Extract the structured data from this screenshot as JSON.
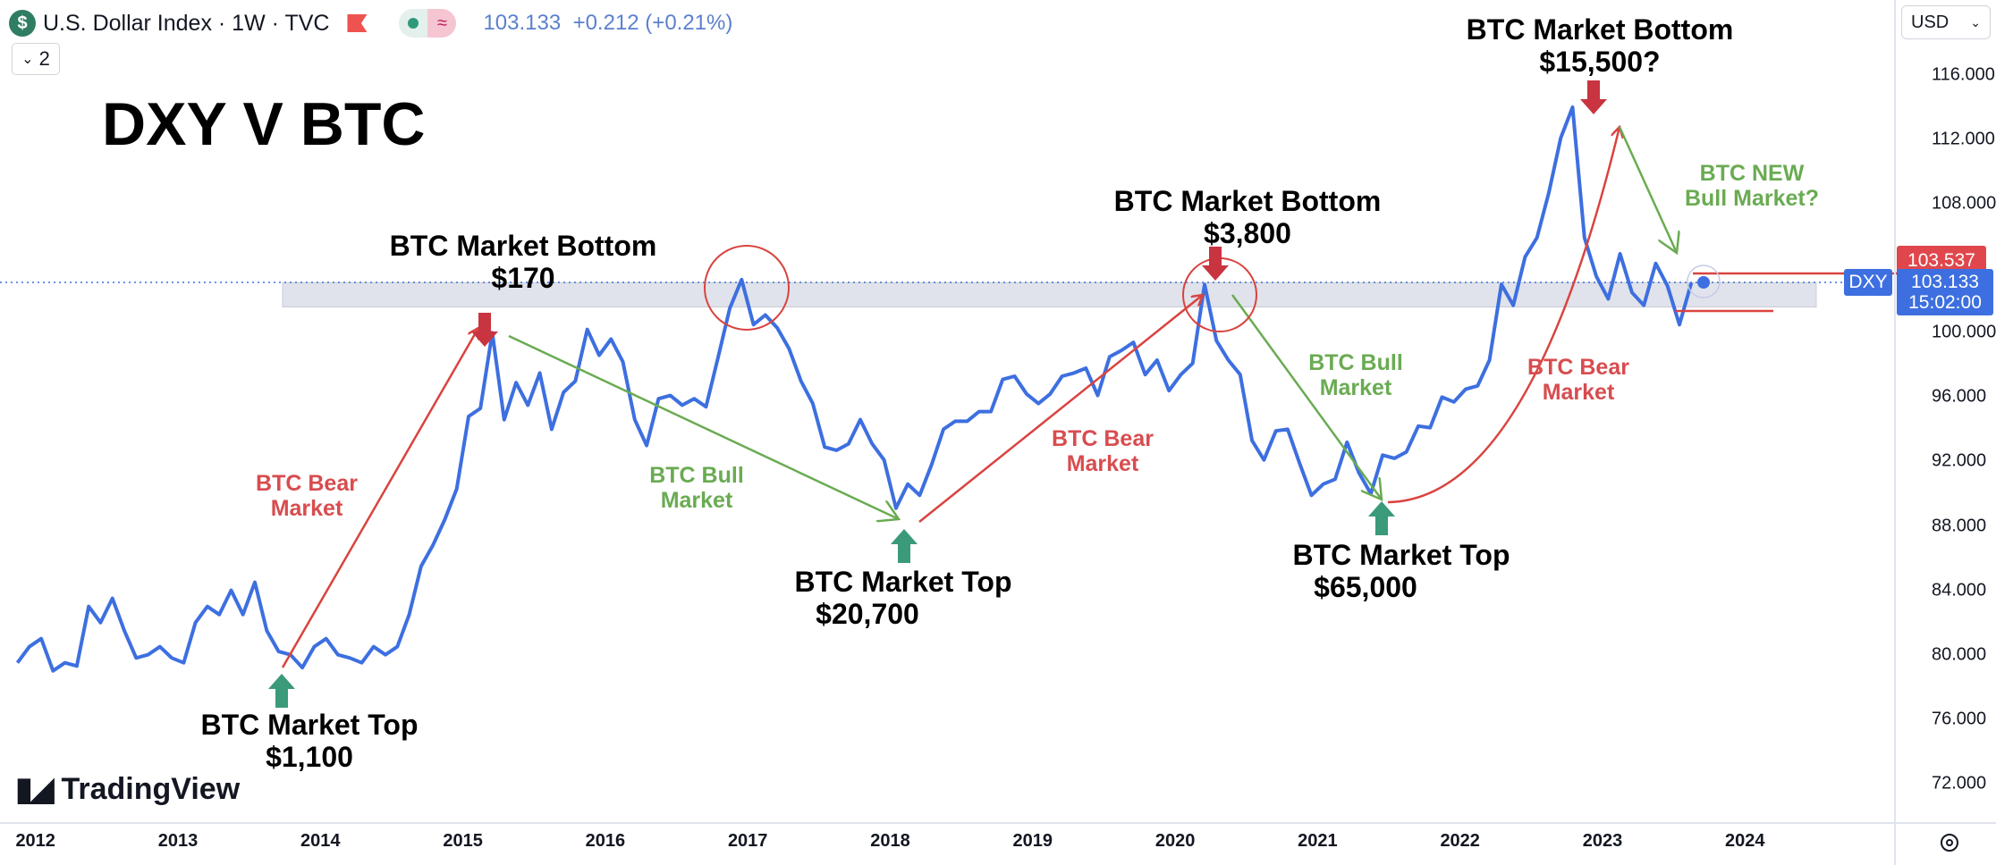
{
  "header": {
    "symbol_icon": "dollar-coin-icon",
    "symbol_icon_text": "$",
    "title": "U.S. Dollar Index · 1W · TVC",
    "price": "103.133",
    "change": "+0.212 (+0.21%)",
    "collapse_count": "2",
    "collapse_icon": "⌄",
    "pill_icon": "≈"
  },
  "currency_select": {
    "value": "USD",
    "icon": "⌄"
  },
  "price_tags": {
    "red_value": "103.537",
    "last_value": "103.133",
    "countdown": "15:02:00",
    "symbol_tag": "DXY"
  },
  "logo": {
    "text": "TradingView",
    "mark": "17"
  },
  "annotations": {
    "title": "DXY V BTC",
    "bottom_170": [
      "BTC Market Bottom",
      "$170"
    ],
    "bottom_3800": [
      "BTC Market Bottom",
      "$3,800"
    ],
    "bottom_15500": [
      "BTC Market Bottom",
      "$15,500?"
    ],
    "top_1100": [
      "BTC Market Top",
      "$1,100"
    ],
    "top_20700": [
      "BTC Market Top",
      "$20,700"
    ],
    "top_65000": [
      "BTC Market Top",
      "$65,000"
    ],
    "bear_1": [
      "BTC Bear",
      "Market"
    ],
    "bear_2": [
      "BTC Bear",
      "Market"
    ],
    "bear_3": [
      "BTC Bear",
      "Market"
    ],
    "bull_1": [
      "BTC Bull",
      "Market"
    ],
    "bull_2": [
      "BTC Bull",
      "Market"
    ],
    "bull_new": [
      "BTC NEW",
      "Bull Market?"
    ]
  },
  "colors": {
    "line": "#3d6fe0",
    "red": "#d9433f",
    "green": "#6aab52",
    "arrow_red": "#c8343f",
    "arrow_green": "#3a9a7a",
    "band": "#e0e3eb"
  },
  "chart_data": {
    "type": "line",
    "title": "",
    "xlabel": "",
    "ylabel": "",
    "ylim": [
      70,
      118
    ],
    "y_ticks": [
      "116.000",
      "112.000",
      "108.000",
      "100.000",
      "96.000",
      "92.000",
      "88.000",
      "84.000",
      "80.000",
      "76.000",
      "72.000"
    ],
    "x_ticks": [
      "2012",
      "2013",
      "2014",
      "2015",
      "2016",
      "2017",
      "2018",
      "2019",
      "2020",
      "2021",
      "2022",
      "2023",
      "2024"
    ],
    "grid": false,
    "resistance_band": [
      101.6,
      103.1
    ],
    "series": [
      {
        "name": "DXY",
        "points": [
          [
            "2011-11",
            79.5
          ],
          [
            "2011-12",
            80.5
          ],
          [
            "2012-01",
            81
          ],
          [
            "2012-02",
            79
          ],
          [
            "2012-03",
            79.5
          ],
          [
            "2012-04",
            79.3
          ],
          [
            "2012-05",
            83
          ],
          [
            "2012-06",
            82
          ],
          [
            "2012-07",
            83.5
          ],
          [
            "2012-08",
            81.5
          ],
          [
            "2012-09",
            79.8
          ],
          [
            "2012-10",
            80
          ],
          [
            "2012-11",
            80.5
          ],
          [
            "2012-12",
            79.8
          ],
          [
            "2013-01",
            79.5
          ],
          [
            "2013-02",
            82
          ],
          [
            "2013-03",
            83
          ],
          [
            "2013-04",
            82.5
          ],
          [
            "2013-05",
            84
          ],
          [
            "2013-06",
            82.5
          ],
          [
            "2013-07",
            84.5
          ],
          [
            "2013-08",
            81.5
          ],
          [
            "2013-09",
            80.2
          ],
          [
            "2013-10",
            80
          ],
          [
            "2013-11",
            79.2
          ],
          [
            "2013-12",
            80.5
          ],
          [
            "2014-01",
            81
          ],
          [
            "2014-02",
            80
          ],
          [
            "2014-03",
            79.8
          ],
          [
            "2014-04",
            79.5
          ],
          [
            "2014-05",
            80.5
          ],
          [
            "2014-06",
            80
          ],
          [
            "2014-07",
            80.5
          ],
          [
            "2014-08",
            82.5
          ],
          [
            "2014-09",
            85.5
          ],
          [
            "2014-10",
            86.8
          ],
          [
            "2014-11",
            88.4
          ],
          [
            "2014-12",
            90.3
          ],
          [
            "2015-01",
            94.8
          ],
          [
            "2015-02",
            95.3
          ],
          [
            "2015-03",
            100.0
          ],
          [
            "2015-04",
            94.6
          ],
          [
            "2015-05",
            96.9
          ],
          [
            "2015-06",
            95.5
          ],
          [
            "2015-07",
            97.5
          ],
          [
            "2015-08",
            94.0
          ],
          [
            "2015-09",
            96.3
          ],
          [
            "2015-10",
            97
          ],
          [
            "2015-11",
            100.2
          ],
          [
            "2015-12",
            98.6
          ],
          [
            "2016-01",
            99.6
          ],
          [
            "2016-02",
            98.2
          ],
          [
            "2016-03",
            94.6
          ],
          [
            "2016-04",
            93
          ],
          [
            "2016-05",
            95.9
          ],
          [
            "2016-06",
            96.1
          ],
          [
            "2016-07",
            95.5
          ],
          [
            "2016-08",
            95.9
          ],
          [
            "2016-09",
            95.4
          ],
          [
            "2016-10",
            98.4
          ],
          [
            "2016-11",
            101.5
          ],
          [
            "2016-12",
            103.3
          ],
          [
            "2017-01",
            100.5
          ],
          [
            "2017-02",
            101.1
          ],
          [
            "2017-03",
            100.3
          ],
          [
            "2017-04",
            99
          ],
          [
            "2017-05",
            97
          ],
          [
            "2017-06",
            95.6
          ],
          [
            "2017-07",
            92.9
          ],
          [
            "2017-08",
            92.7
          ],
          [
            "2017-09",
            93.1
          ],
          [
            "2017-10",
            94.6
          ],
          [
            "2017-11",
            93.1
          ],
          [
            "2017-12",
            92.1
          ],
          [
            "2018-01",
            89.1
          ],
          [
            "2018-02",
            90.6
          ],
          [
            "2018-03",
            89.9
          ],
          [
            "2018-04",
            91.8
          ],
          [
            "2018-05",
            94
          ],
          [
            "2018-06",
            94.5
          ],
          [
            "2018-07",
            94.5
          ],
          [
            "2018-08",
            95.1
          ],
          [
            "2018-09",
            95.1
          ],
          [
            "2018-10",
            97.1
          ],
          [
            "2018-11",
            97.3
          ],
          [
            "2018-12",
            96.2
          ],
          [
            "2019-01",
            95.6
          ],
          [
            "2019-02",
            96.2
          ],
          [
            "2019-03",
            97.3
          ],
          [
            "2019-04",
            97.5
          ],
          [
            "2019-05",
            97.8
          ],
          [
            "2019-06",
            96.1
          ],
          [
            "2019-07",
            98.5
          ],
          [
            "2019-08",
            98.9
          ],
          [
            "2019-09",
            99.4
          ],
          [
            "2019-10",
            97.4
          ],
          [
            "2019-11",
            98.3
          ],
          [
            "2019-12",
            96.4
          ],
          [
            "2020-01",
            97.4
          ],
          [
            "2020-02",
            98.1
          ],
          [
            "2020-03",
            103.0
          ],
          [
            "2020-04",
            99.5
          ],
          [
            "2020-05",
            98.3
          ],
          [
            "2020-06",
            97.4
          ],
          [
            "2020-07",
            93.3
          ],
          [
            "2020-08",
            92.1
          ],
          [
            "2020-09",
            93.9
          ],
          [
            "2020-10",
            94
          ],
          [
            "2020-11",
            91.9
          ],
          [
            "2020-12",
            89.9
          ],
          [
            "2021-01",
            90.6
          ],
          [
            "2021-02",
            90.9
          ],
          [
            "2021-03",
            93.2
          ],
          [
            "2021-04",
            91.3
          ],
          [
            "2021-05",
            90
          ],
          [
            "2021-06",
            92.4
          ],
          [
            "2021-07",
            92.2
          ],
          [
            "2021-08",
            92.6
          ],
          [
            "2021-09",
            94.2
          ],
          [
            "2021-10",
            94.1
          ],
          [
            "2021-11",
            96
          ],
          [
            "2021-12",
            95.7
          ],
          [
            "2022-01",
            96.5
          ],
          [
            "2022-02",
            96.7
          ],
          [
            "2022-03",
            98.3
          ],
          [
            "2022-04",
            103
          ],
          [
            "2022-05",
            101.7
          ],
          [
            "2022-06",
            104.7
          ],
          [
            "2022-07",
            105.9
          ],
          [
            "2022-08",
            108.7
          ],
          [
            "2022-09",
            112.1
          ],
          [
            "2022-10",
            114.0
          ],
          [
            "2022-11",
            105.9
          ],
          [
            "2022-12",
            103.5
          ],
          [
            "2023-01",
            102.1
          ],
          [
            "2023-02",
            104.9
          ],
          [
            "2023-03",
            102.5
          ],
          [
            "2023-04",
            101.7
          ],
          [
            "2023-05",
            104.3
          ],
          [
            "2023-06",
            102.9
          ],
          [
            "2023-07",
            100.5
          ],
          [
            "2023-08",
            103.1
          ]
        ]
      }
    ]
  }
}
